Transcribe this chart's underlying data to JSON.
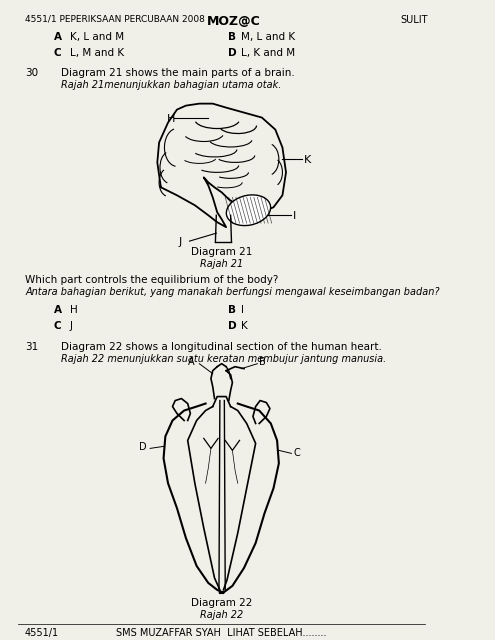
{
  "bg_color": "#f0efe8",
  "header_left": "4551/1 PEPERIKSAAN PERCUBAAN 2008",
  "header_mid": "MOZ@C",
  "header_right": "SULIT",
  "prev_q_options": [
    [
      "A",
      "K, L and M",
      "B",
      "M, L and K"
    ],
    [
      "C",
      "L, M and K",
      "D",
      "L, K and M"
    ]
  ],
  "q30_num": "30",
  "q30_text": "Diagram 21 shows the main parts of a brain.",
  "q30_malay": "Rajah 21menunjukkan bahagian utama otak.",
  "diagram21_label": "Diagram 21",
  "diagram21_malay": "Rajah 21",
  "q30_question": "Which part controls the equilibrium of the body?",
  "q30_question_malay": "Antara bahagian berikut, yang manakah berfungsi mengawal keseimbangan badan?",
  "q30_options": [
    [
      "A",
      "H",
      "B",
      "I"
    ],
    [
      "C",
      "J",
      "D",
      "K"
    ]
  ],
  "q31_num": "31",
  "q31_text": "Diagram 22 shows a longitudinal section of the human heart.",
  "q31_malay": "Rajah 22 menunjukkan suatu keratan membujur jantung manusia.",
  "diagram22_label": "Diagram 22",
  "diagram22_malay": "Rajah 22",
  "footer_left": "4551/1",
  "footer_center": "SMS MUZAFFAR SYAH",
  "footer_right": "LIHAT SEBELAH........"
}
